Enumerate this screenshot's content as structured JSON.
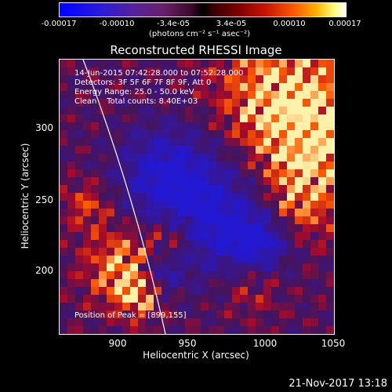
{
  "colorbar": {
    "ticks": [
      "-0.00017",
      "-0.00010",
      "-3.4e-05",
      "3.4e-05",
      "0.00010",
      "0.00017"
    ],
    "units": "(photons cm⁻² s⁻¹ asec⁻²)"
  },
  "title": "Reconstructed RHESSI Image",
  "info": {
    "time_range": "14-Jun-2015 07:42:28.000 to 07:52:28.000",
    "detectors": "Detectors: 3F 5F 6F 7F 8F 9F, Att 0",
    "energy_range": "Energy Range: 25.0 - 50.0 keV",
    "method_counts": "Clean    Total counts: 8.40E+03"
  },
  "peak": "Position of Peak = [899,155]",
  "x_axis": {
    "label": "Heliocentric X (arcsec)",
    "ticks": [
      "900",
      "950",
      "1000",
      "1050"
    ]
  },
  "y_axis": {
    "label": "Heliocentric Y (arcsec)",
    "ticks": [
      "300",
      "250",
      "200"
    ]
  },
  "timestamp": "21-Nov-2017 13:18"
}
